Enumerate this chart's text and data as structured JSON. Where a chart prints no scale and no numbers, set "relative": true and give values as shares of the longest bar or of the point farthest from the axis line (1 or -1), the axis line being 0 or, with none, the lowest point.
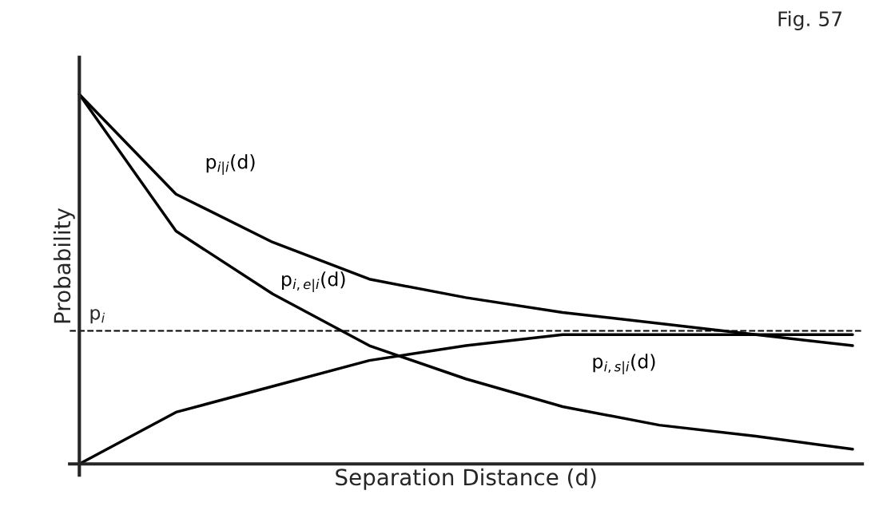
{
  "chart_data": {
    "type": "line",
    "title": "Fig. 57",
    "xlabel": "Separation Distance (d)",
    "ylabel": "Probability",
    "relative": true,
    "categories": [
      null,
      null,
      null,
      null,
      null,
      null,
      null,
      null,
      null
    ],
    "series": [
      {
        "name": "p$_{i|i}$(d)",
        "color": "#000000",
        "values": [
          1.0,
          0.73,
          0.6,
          0.5,
          0.45,
          0.41,
          0.38,
          0.35,
          0.32
        ]
      },
      {
        "name": "p$_{i,e|i}$(d)",
        "color": "#000000",
        "values": [
          1.0,
          0.63,
          0.46,
          0.32,
          0.23,
          0.155,
          0.105,
          0.075,
          0.04
        ]
      },
      {
        "name": "p$_{i,s|i}$(d)",
        "color": "#000000",
        "values": [
          0,
          0.14,
          0.21,
          0.28,
          0.32,
          0.35,
          0.35,
          0.35,
          0.35
        ]
      }
    ],
    "ref_lines": [
      {
        "axis": "y",
        "value": 0.36,
        "label": "p$_{i}$",
        "color": "#000000",
        "line_style": "dashed"
      }
    ],
    "tick_labels": false,
    "legend": false,
    "marker": "none",
    "line_style": "solid"
  }
}
